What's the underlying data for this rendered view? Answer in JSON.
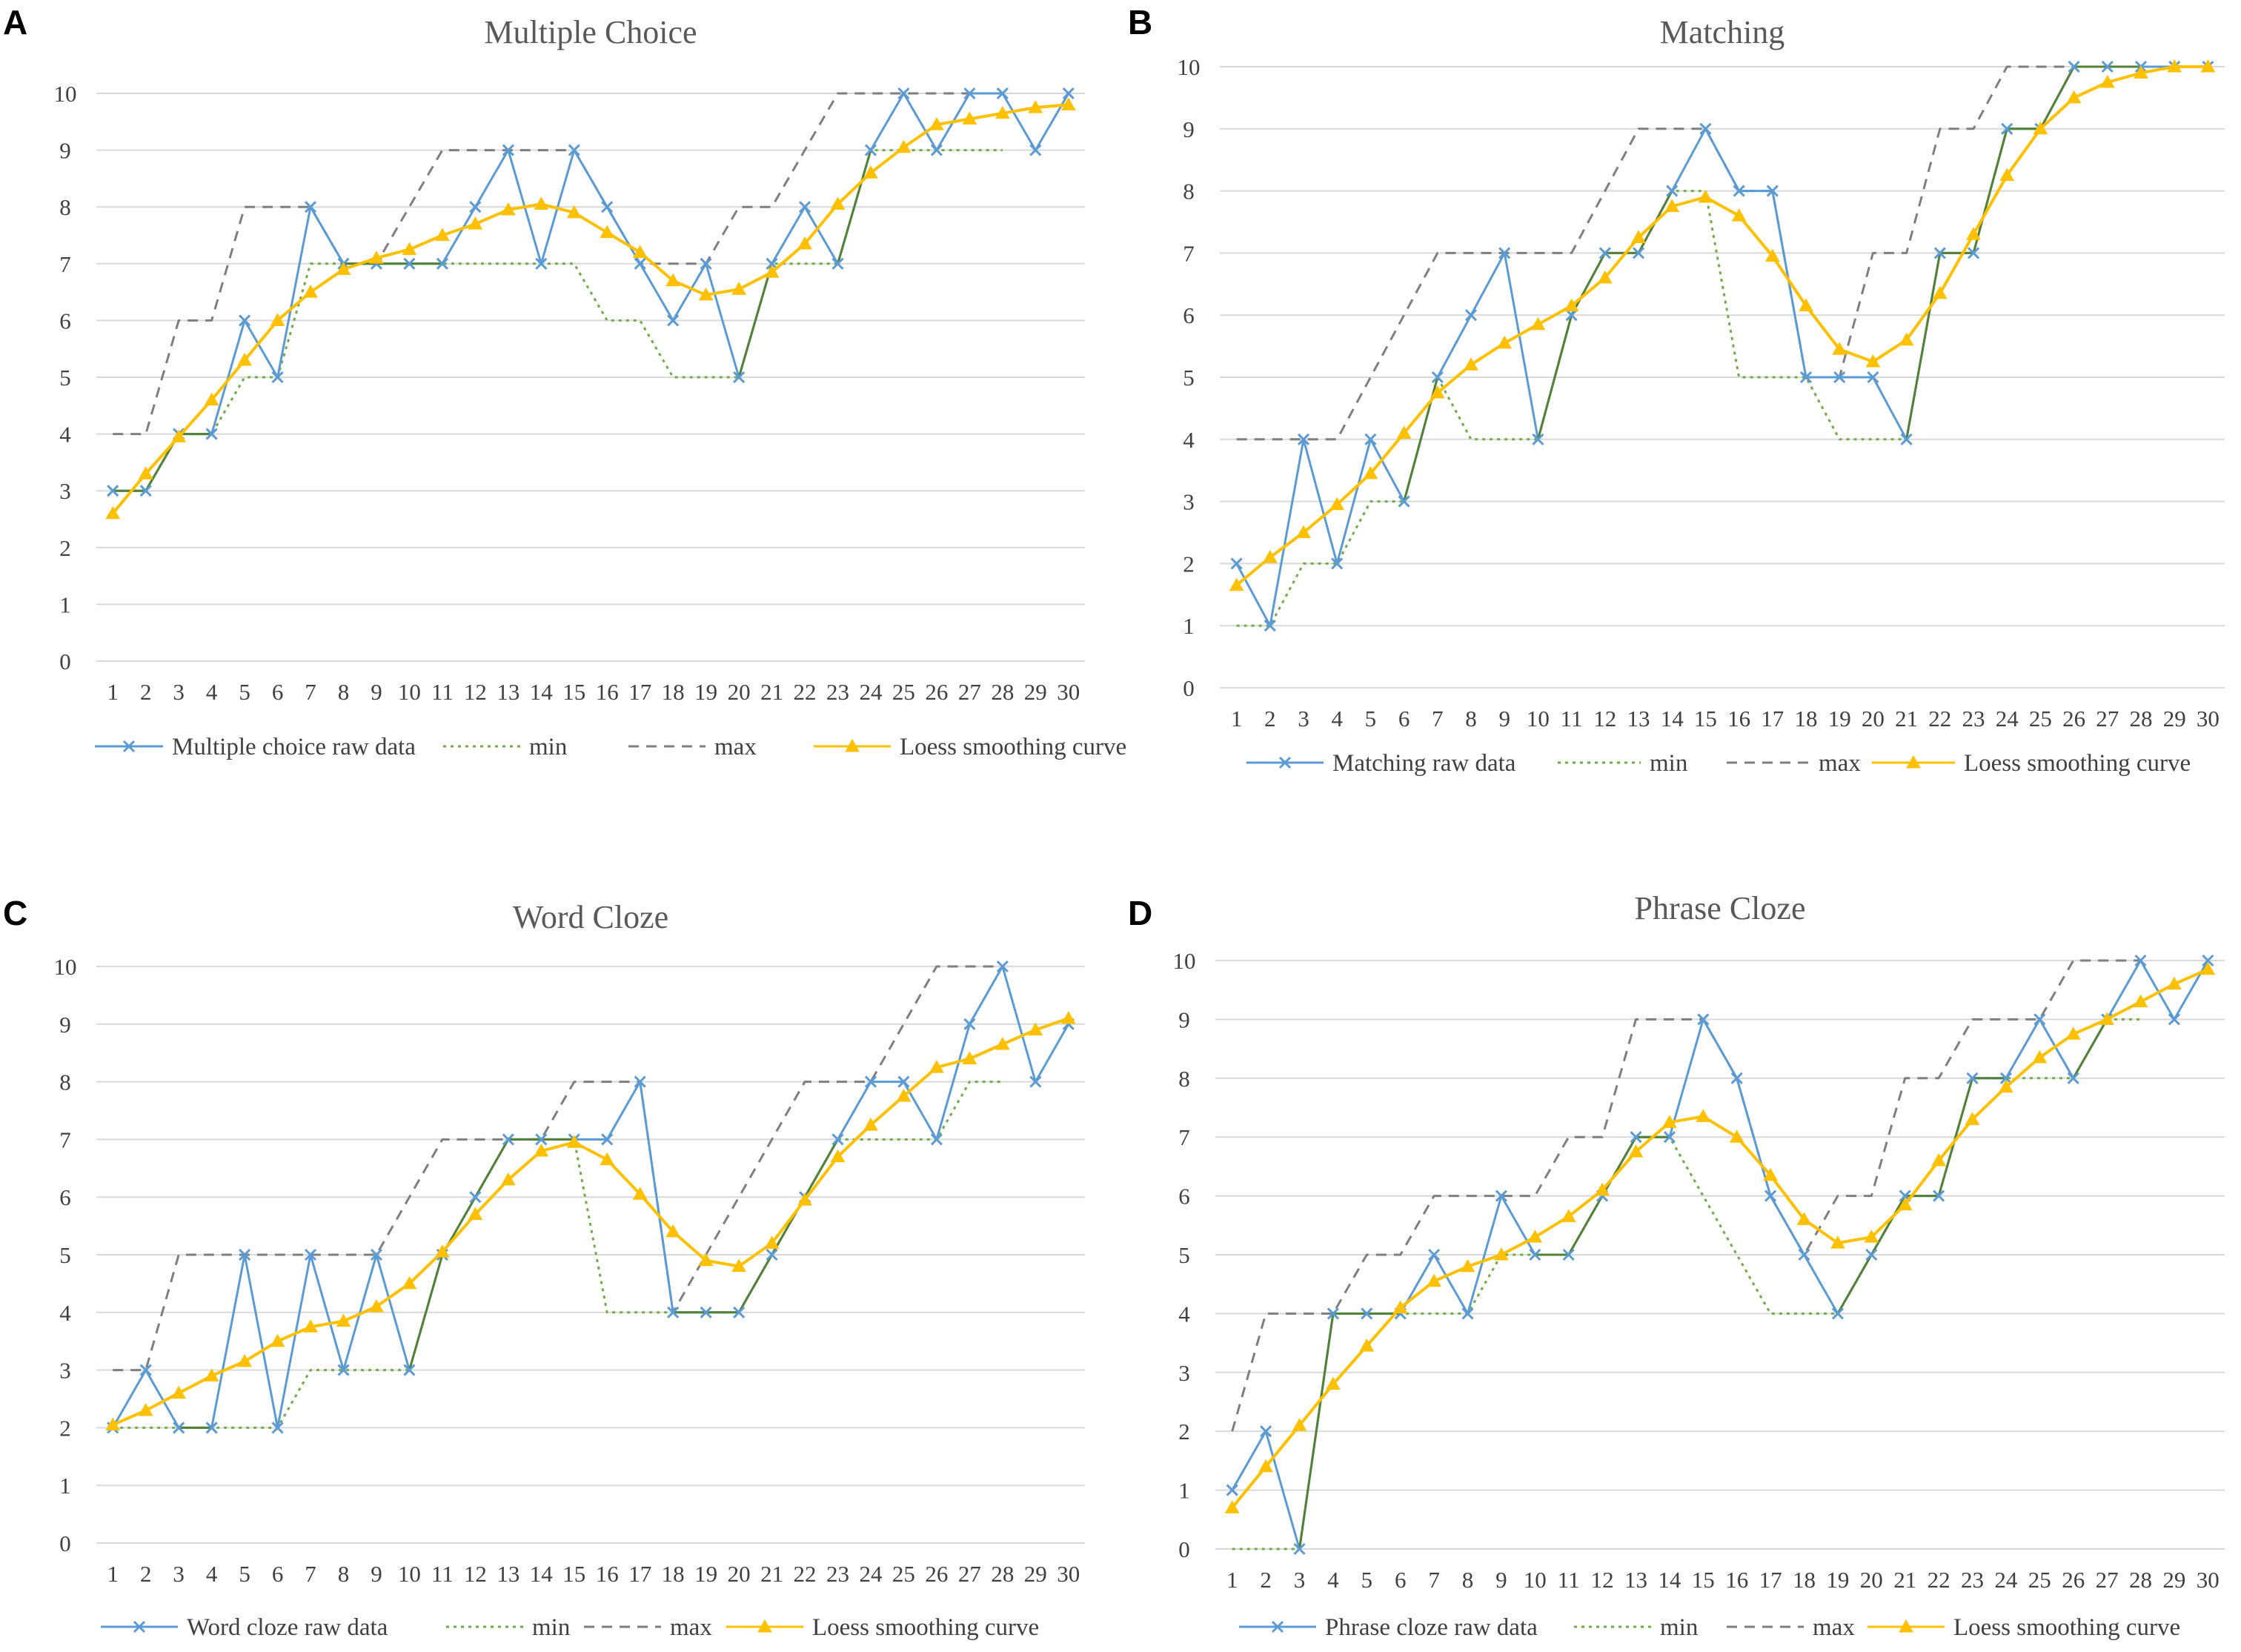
{
  "figure": {
    "background": "#ffffff"
  },
  "styles": {
    "raw": {
      "color": "#5b9bd5",
      "dash": "",
      "marker": "x"
    },
    "min": {
      "color": "#70ad47",
      "dash": "4,6",
      "marker": "none"
    },
    "max": {
      "color": "#7f7f7f",
      "dash": "14,10",
      "marker": "none"
    },
    "loess": {
      "color": "#ffc000",
      "dash": "",
      "marker": "triangle"
    },
    "overlap": {
      "color": "#548235"
    }
  },
  "chart_data": [
    {
      "panel_label": "A",
      "type": "line",
      "title": "Multiple Choice",
      "xlabel": "",
      "ylabel": "",
      "x": [
        1,
        2,
        3,
        4,
        5,
        6,
        7,
        8,
        9,
        10,
        11,
        12,
        13,
        14,
        15,
        16,
        17,
        18,
        19,
        20,
        21,
        22,
        23,
        24,
        25,
        26,
        27,
        28,
        29,
        30
      ],
      "ylim": [
        0,
        10
      ],
      "yticks": [
        0,
        1,
        2,
        3,
        4,
        5,
        6,
        7,
        8,
        9,
        10
      ],
      "grid": true,
      "legend_position": "bottom",
      "series": [
        {
          "key": "raw",
          "name": "Multiple choice raw data",
          "values": [
            3,
            3,
            4,
            4,
            6,
            5,
            8,
            7,
            7,
            7,
            7,
            8,
            9,
            7,
            9,
            8,
            7,
            6,
            7,
            5,
            7,
            8,
            7,
            9,
            10,
            9,
            10,
            10,
            9,
            10
          ]
        },
        {
          "key": "min",
          "name": "min",
          "values": [
            3,
            3,
            4,
            4,
            5,
            5,
            7,
            7,
            7,
            7,
            7,
            7,
            7,
            7,
            7,
            6,
            6,
            5,
            5,
            5,
            7,
            7,
            7,
            9,
            9,
            9,
            9,
            9,
            null,
            null
          ]
        },
        {
          "key": "max",
          "name": "max",
          "values": [
            4,
            4,
            6,
            6,
            8,
            8,
            8,
            7,
            7,
            8,
            9,
            9,
            9,
            9,
            9,
            8,
            7,
            7,
            7,
            8,
            8,
            9,
            10,
            10,
            10,
            10,
            10,
            10,
            null,
            null
          ]
        },
        {
          "key": "loess",
          "name": "Loess smoothing curve",
          "values": [
            2.6,
            3.3,
            3.95,
            4.6,
            5.3,
            6.0,
            6.5,
            6.9,
            7.1,
            7.25,
            7.5,
            7.7,
            7.95,
            8.05,
            7.9,
            7.55,
            7.2,
            6.7,
            6.45,
            6.55,
            6.85,
            7.35,
            8.05,
            8.6,
            9.05,
            9.45,
            9.55,
            9.65,
            9.75,
            9.8
          ]
        }
      ]
    },
    {
      "panel_label": "B",
      "type": "line",
      "title": "Matching",
      "xlabel": "",
      "ylabel": "",
      "x": [
        1,
        2,
        3,
        4,
        5,
        6,
        7,
        8,
        9,
        10,
        11,
        12,
        13,
        14,
        15,
        16,
        17,
        18,
        19,
        20,
        21,
        22,
        23,
        24,
        25,
        26,
        27,
        28,
        29,
        30
      ],
      "ylim": [
        0,
        10
      ],
      "yticks": [
        0,
        1,
        2,
        3,
        4,
        5,
        6,
        7,
        8,
        9,
        10
      ],
      "grid": true,
      "legend_position": "bottom",
      "series": [
        {
          "key": "raw",
          "name": "Matching raw data",
          "values": [
            2,
            1,
            4,
            2,
            4,
            3,
            5,
            6,
            7,
            4,
            6,
            7,
            7,
            8,
            9,
            8,
            8,
            5,
            5,
            5,
            4,
            7,
            7,
            9,
            9,
            10,
            10,
            10,
            10,
            10
          ]
        },
        {
          "key": "min",
          "name": "min",
          "values": [
            1,
            1,
            2,
            2,
            3,
            3,
            5,
            4,
            4,
            4,
            6,
            7,
            7,
            8,
            8,
            5,
            5,
            5,
            4,
            4,
            4,
            7,
            7,
            9,
            9,
            10,
            10,
            10,
            null,
            null
          ]
        },
        {
          "key": "max",
          "name": "max",
          "values": [
            4,
            4,
            4,
            4,
            5,
            6,
            7,
            7,
            7,
            7,
            7,
            8,
            9,
            9,
            9,
            8,
            8,
            5,
            5,
            7,
            7,
            9,
            9,
            10,
            10,
            10,
            10,
            10,
            null,
            null
          ]
        },
        {
          "key": "loess",
          "name": "Loess smoothing curve",
          "values": [
            1.65,
            2.1,
            2.5,
            2.95,
            3.45,
            4.1,
            4.75,
            5.2,
            5.55,
            5.85,
            6.15,
            6.6,
            7.25,
            7.75,
            7.9,
            7.6,
            6.95,
            6.15,
            5.45,
            5.25,
            5.6,
            6.35,
            7.3,
            8.25,
            9.0,
            9.5,
            9.75,
            9.9,
            10.0,
            10.0
          ]
        }
      ]
    },
    {
      "panel_label": "C",
      "type": "line",
      "title": "Word Cloze",
      "xlabel": "",
      "ylabel": "",
      "x": [
        1,
        2,
        3,
        4,
        5,
        6,
        7,
        8,
        9,
        10,
        11,
        12,
        13,
        14,
        15,
        16,
        17,
        18,
        19,
        20,
        21,
        22,
        23,
        24,
        25,
        26,
        27,
        28,
        29,
        30
      ],
      "ylim": [
        0,
        10
      ],
      "yticks": [
        0,
        1,
        2,
        3,
        4,
        5,
        6,
        7,
        8,
        9,
        10
      ],
      "grid": true,
      "legend_position": "bottom",
      "series": [
        {
          "key": "raw",
          "name": "Word cloze raw data",
          "values": [
            2,
            3,
            2,
            2,
            5,
            2,
            5,
            3,
            5,
            3,
            5,
            6,
            7,
            7,
            7,
            7,
            8,
            4,
            4,
            4,
            5,
            6,
            7,
            8,
            8,
            7,
            9,
            10,
            8,
            9
          ]
        },
        {
          "key": "min",
          "name": "min",
          "values": [
            2,
            2,
            2,
            2,
            2,
            2,
            3,
            3,
            3,
            3,
            5,
            6,
            7,
            7,
            7,
            4,
            4,
            4,
            4,
            4,
            5,
            6,
            7,
            7,
            7,
            7,
            8,
            8,
            null,
            null
          ]
        },
        {
          "key": "max",
          "name": "max",
          "values": [
            3,
            3,
            5,
            5,
            5,
            5,
            5,
            5,
            5,
            6,
            7,
            7,
            7,
            7,
            8,
            8,
            8,
            4,
            5,
            6,
            7,
            8,
            8,
            8,
            9,
            10,
            10,
            10,
            null,
            null
          ]
        },
        {
          "key": "loess",
          "name": "Loess smoothing curve",
          "values": [
            2.05,
            2.3,
            2.6,
            2.9,
            3.15,
            3.5,
            3.75,
            3.85,
            4.1,
            4.5,
            5.05,
            5.7,
            6.3,
            6.8,
            6.95,
            6.65,
            6.05,
            5.4,
            4.9,
            4.8,
            5.2,
            5.95,
            6.7,
            7.25,
            7.75,
            8.25,
            8.4,
            8.65,
            8.9,
            9.1
          ]
        }
      ]
    },
    {
      "panel_label": "D",
      "type": "line",
      "title": "Phrase Cloze",
      "xlabel": "",
      "ylabel": "",
      "x": [
        1,
        2,
        3,
        4,
        5,
        6,
        7,
        8,
        9,
        10,
        11,
        12,
        13,
        14,
        15,
        16,
        17,
        18,
        19,
        20,
        21,
        22,
        23,
        24,
        25,
        26,
        27,
        28,
        29,
        30
      ],
      "ylim": [
        0,
        10
      ],
      "yticks": [
        0,
        1,
        2,
        3,
        4,
        5,
        6,
        7,
        8,
        9,
        10
      ],
      "grid": true,
      "legend_position": "bottom",
      "series": [
        {
          "key": "raw",
          "name": "Phrase cloze raw data",
          "values": [
            1,
            2,
            0,
            4,
            4,
            4,
            5,
            4,
            6,
            5,
            5,
            6,
            7,
            7,
            9,
            8,
            6,
            5,
            4,
            5,
            6,
            6,
            8,
            8,
            9,
            8,
            9,
            10,
            9,
            10
          ]
        },
        {
          "key": "min",
          "name": "min",
          "values": [
            0,
            0,
            0,
            4,
            4,
            4,
            4,
            4,
            5,
            5,
            5,
            6,
            7,
            7,
            6,
            5,
            4,
            4,
            4,
            5,
            6,
            6,
            8,
            8,
            8,
            8,
            9,
            9,
            null,
            null
          ]
        },
        {
          "key": "max",
          "name": "max",
          "values": [
            2,
            4,
            4,
            4,
            5,
            5,
            6,
            6,
            6,
            6,
            7,
            7,
            9,
            9,
            9,
            8,
            6,
            5,
            6,
            6,
            8,
            8,
            9,
            9,
            9,
            10,
            10,
            10,
            null,
            null
          ]
        },
        {
          "key": "loess",
          "name": "Loess smoothing curve",
          "values": [
            0.7,
            1.4,
            2.1,
            2.8,
            3.45,
            4.1,
            4.55,
            4.8,
            5.0,
            5.3,
            5.65,
            6.1,
            6.75,
            7.25,
            7.35,
            7.0,
            6.35,
            5.6,
            5.2,
            5.3,
            5.85,
            6.6,
            7.3,
            7.85,
            8.35,
            8.75,
            9.0,
            9.3,
            9.6,
            9.85
          ]
        }
      ]
    }
  ]
}
